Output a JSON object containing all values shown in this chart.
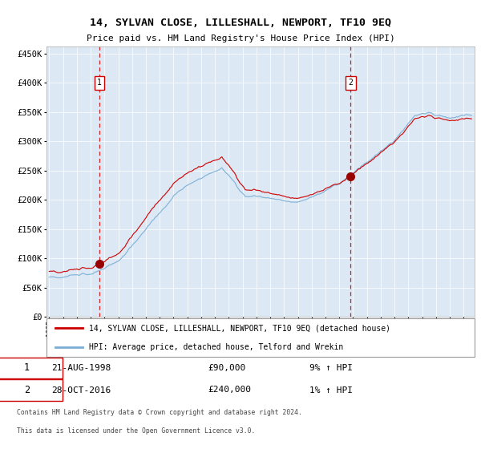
{
  "title": "14, SYLVAN CLOSE, LILLESHALL, NEWPORT, TF10 9EQ",
  "subtitle": "Price paid vs. HM Land Registry's House Price Index (HPI)",
  "legend_line1": "14, SYLVAN CLOSE, LILLESHALL, NEWPORT, TF10 9EQ (detached house)",
  "legend_line2": "HPI: Average price, detached house, Telford and Wrekin",
  "sale1_date": "21-AUG-1998",
  "sale1_price": 90000,
  "sale1_hpi": "9% ↑ HPI",
  "sale2_date": "28-OCT-2016",
  "sale2_price": 240000,
  "sale2_hpi": "1% ↑ HPI",
  "footnote1": "Contains HM Land Registry data © Crown copyright and database right 2024.",
  "footnote2": "This data is licensed under the Open Government Licence v3.0.",
  "bg_color": "#dce9f5",
  "red_line_color": "#cc0000",
  "blue_line_color": "#7aadd4",
  "marker_color": "#990000",
  "sale1_x": 1998.63,
  "sale2_x": 2016.83,
  "ylim_min": 0,
  "ylim_max": 462000,
  "xlim_min": 1994.8,
  "xlim_max": 2025.8
}
